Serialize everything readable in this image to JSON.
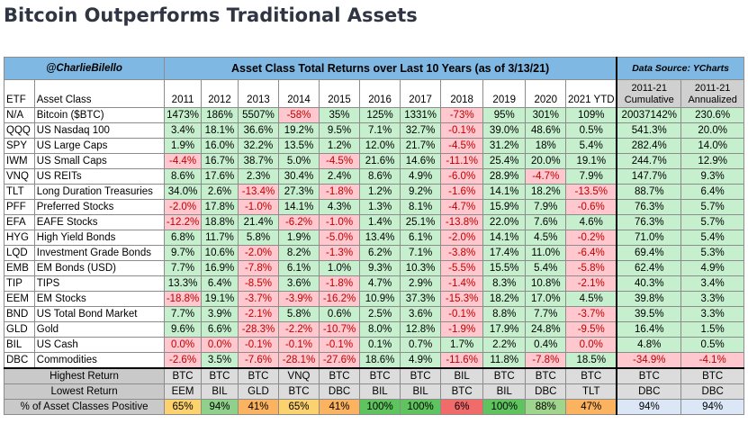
{
  "page": {
    "title": "Bitcoin Outperforms Traditional Assets"
  },
  "table": {
    "author": "@CharlieBilello",
    "title": "Asset Class Total Returns over Last 10 Years (as of 3/13/21)",
    "source": "Data Source: YCharts",
    "headers": {
      "etf": "ETF",
      "asset": "Asset Class",
      "years": [
        "2011",
        "2012",
        "2013",
        "2014",
        "2015",
        "2016",
        "2017",
        "2018",
        "2019",
        "2020",
        "2021 YTD"
      ],
      "cumulative": "2011-21 Cumulative",
      "annualized": "2011-21 Annualized"
    },
    "rows": [
      {
        "etf": "N/A",
        "asset": "Bitcoin ($BTC)",
        "values": [
          "1473%",
          "186%",
          "5507%",
          "-58%",
          "35%",
          "125%",
          "1331%",
          "-73%",
          "95%",
          "301%",
          "109%"
        ],
        "cumulative": "20037142%",
        "annualized": "230.6%"
      },
      {
        "etf": "QQQ",
        "asset": "US Nasdaq 100",
        "values": [
          "3.4%",
          "18.1%",
          "36.6%",
          "19.2%",
          "9.5%",
          "7.1%",
          "32.7%",
          "-0.1%",
          "39.0%",
          "48.6%",
          "0.5%"
        ],
        "cumulative": "541.3%",
        "annualized": "20.0%"
      },
      {
        "etf": "SPY",
        "asset": "US Large Caps",
        "values": [
          "1.9%",
          "16.0%",
          "32.2%",
          "13.5%",
          "1.2%",
          "12.0%",
          "21.7%",
          "-4.5%",
          "31.2%",
          "18%",
          "5.4%"
        ],
        "cumulative": "282.4%",
        "annualized": "14.0%"
      },
      {
        "etf": "IWM",
        "asset": "US Small Caps",
        "values": [
          "-4.4%",
          "16.7%",
          "38.7%",
          "5.0%",
          "-4.5%",
          "21.6%",
          "14.6%",
          "-11.1%",
          "25.4%",
          "20.0%",
          "19.1%"
        ],
        "cumulative": "244.7%",
        "annualized": "12.9%"
      },
      {
        "etf": "VNQ",
        "asset": "US REITs",
        "values": [
          "8.6%",
          "17.6%",
          "2.3%",
          "30.4%",
          "2.4%",
          "8.6%",
          "4.9%",
          "-6.0%",
          "28.9%",
          "-4.7%",
          "7.9%"
        ],
        "cumulative": "147.7%",
        "annualized": "9.3%"
      },
      {
        "etf": "TLT",
        "asset": "Long Duration Treasuries",
        "values": [
          "34.0%",
          "2.6%",
          "-13.4%",
          "27.3%",
          "-1.8%",
          "1.2%",
          "9.2%",
          "-1.6%",
          "14.1%",
          "18.2%",
          "-13.5%"
        ],
        "cumulative": "88.7%",
        "annualized": "6.4%"
      },
      {
        "etf": "PFF",
        "asset": "Preferred Stocks",
        "values": [
          "-2.0%",
          "17.8%",
          "-1.0%",
          "14.1%",
          "4.3%",
          "1.3%",
          "8.1%",
          "-4.7%",
          "15.9%",
          "7.9%",
          "-0.6%"
        ],
        "cumulative": "76.3%",
        "annualized": "5.7%"
      },
      {
        "etf": "EFA",
        "asset": "EAFE Stocks",
        "values": [
          "-12.2%",
          "18.8%",
          "21.4%",
          "-6.2%",
          "-1.0%",
          "1.4%",
          "25.1%",
          "-13.8%",
          "22.0%",
          "7.6%",
          "4.6%"
        ],
        "cumulative": "76.3%",
        "annualized": "5.7%"
      },
      {
        "etf": "HYG",
        "asset": "High Yield Bonds",
        "values": [
          "6.8%",
          "11.7%",
          "5.8%",
          "1.9%",
          "-5.0%",
          "13.4%",
          "6.1%",
          "-2.0%",
          "14.1%",
          "4.5%",
          "-0.2%"
        ],
        "cumulative": "71.0%",
        "annualized": "5.4%"
      },
      {
        "etf": "LQD",
        "asset": "Investment Grade Bonds",
        "values": [
          "9.7%",
          "10.6%",
          "-2.0%",
          "8.2%",
          "-1.3%",
          "6.2%",
          "7.1%",
          "-3.8%",
          "17.4%",
          "11.0%",
          "-6.4%"
        ],
        "cumulative": "69.4%",
        "annualized": "5.3%"
      },
      {
        "etf": "EMB",
        "asset": "EM Bonds (USD)",
        "values": [
          "7.7%",
          "16.9%",
          "-7.8%",
          "6.1%",
          "1.0%",
          "9.3%",
          "10.3%",
          "-5.5%",
          "15.5%",
          "5.4%",
          "-5.8%"
        ],
        "cumulative": "62.4%",
        "annualized": "4.9%"
      },
      {
        "etf": "TIP",
        "asset": "TIPS",
        "values": [
          "13.3%",
          "6.4%",
          "-8.5%",
          "3.6%",
          "-1.8%",
          "4.7%",
          "2.9%",
          "-1.4%",
          "8.3%",
          "10.8%",
          "-2.1%"
        ],
        "cumulative": "40.3%",
        "annualized": "3.4%"
      },
      {
        "etf": "EEM",
        "asset": "EM Stocks",
        "values": [
          "-18.8%",
          "19.1%",
          "-3.7%",
          "-3.9%",
          "-16.2%",
          "10.9%",
          "37.3%",
          "-15.3%",
          "18.2%",
          "17.0%",
          "4.5%"
        ],
        "cumulative": "39.8%",
        "annualized": "3.3%"
      },
      {
        "etf": "BND",
        "asset": "US Total Bond Market",
        "values": [
          "7.7%",
          "3.9%",
          "-2.1%",
          "5.8%",
          "0.6%",
          "2.5%",
          "3.6%",
          "-0.1%",
          "8.8%",
          "7.7%",
          "-3.7%"
        ],
        "cumulative": "39.5%",
        "annualized": "3.3%"
      },
      {
        "etf": "GLD",
        "asset": "Gold",
        "values": [
          "9.6%",
          "6.6%",
          "-28.3%",
          "-2.2%",
          "-10.7%",
          "8.0%",
          "12.8%",
          "-1.9%",
          "17.9%",
          "24.8%",
          "-9.5%"
        ],
        "cumulative": "16.4%",
        "annualized": "1.5%"
      },
      {
        "etf": "BIL",
        "asset": "US Cash",
        "values": [
          "0.0%",
          "0.0%",
          "-0.1%",
          "-0.1%",
          "-0.1%",
          "0.1%",
          "0.7%",
          "1.7%",
          "2.2%",
          "0.4%",
          "0.0%"
        ],
        "cumulative": "4.8%",
        "annualized": "0.5%"
      },
      {
        "etf": "DBC",
        "asset": "Commodities",
        "values": [
          "-2.6%",
          "3.5%",
          "-7.6%",
          "-28.1%",
          "-27.6%",
          "18.6%",
          "4.9%",
          "-11.6%",
          "11.8%",
          "-7.8%",
          "18.5%"
        ],
        "cumulative": "-34.9%",
        "annualized": "-4.1%"
      }
    ],
    "cell_colors": [
      [
        "p",
        "p",
        "p",
        "n",
        "p",
        "p",
        "p",
        "n",
        "p",
        "p",
        "p",
        "p",
        "p"
      ],
      [
        "p",
        "p",
        "p",
        "p",
        "p",
        "p",
        "p",
        "n",
        "p",
        "p",
        "p",
        "p",
        "p"
      ],
      [
        "p",
        "p",
        "p",
        "p",
        "p",
        "p",
        "p",
        "n",
        "p",
        "p",
        "p",
        "p",
        "p"
      ],
      [
        "n",
        "p",
        "p",
        "p",
        "n",
        "p",
        "p",
        "n",
        "p",
        "p",
        "p",
        "p",
        "p"
      ],
      [
        "p",
        "p",
        "p",
        "p",
        "p",
        "p",
        "p",
        "n",
        "p",
        "n",
        "p",
        "p",
        "p"
      ],
      [
        "p",
        "p",
        "n",
        "p",
        "n",
        "p",
        "p",
        "n",
        "p",
        "p",
        "n",
        "p",
        "p"
      ],
      [
        "n",
        "p",
        "n",
        "p",
        "p",
        "p",
        "p",
        "n",
        "p",
        "p",
        "n",
        "p",
        "p"
      ],
      [
        "n",
        "p",
        "p",
        "n",
        "n",
        "p",
        "p",
        "n",
        "p",
        "p",
        "p",
        "p",
        "p"
      ],
      [
        "p",
        "p",
        "p",
        "p",
        "n",
        "p",
        "p",
        "n",
        "p",
        "p",
        "n",
        "p",
        "p"
      ],
      [
        "p",
        "p",
        "n",
        "p",
        "n",
        "p",
        "p",
        "n",
        "p",
        "p",
        "n",
        "p",
        "p"
      ],
      [
        "p",
        "p",
        "n",
        "p",
        "p",
        "p",
        "p",
        "n",
        "p",
        "p",
        "n",
        "p",
        "p"
      ],
      [
        "p",
        "p",
        "n",
        "p",
        "n",
        "p",
        "p",
        "n",
        "p",
        "p",
        "n",
        "p",
        "p"
      ],
      [
        "n",
        "p",
        "n",
        "n",
        "n",
        "p",
        "p",
        "n",
        "p",
        "p",
        "p",
        "p",
        "p"
      ],
      [
        "p",
        "p",
        "n",
        "p",
        "p",
        "p",
        "p",
        "n",
        "p",
        "p",
        "n",
        "p",
        "p"
      ],
      [
        "p",
        "p",
        "n",
        "n",
        "n",
        "p",
        "p",
        "n",
        "p",
        "p",
        "n",
        "p",
        "p"
      ],
      [
        "n",
        "n",
        "n",
        "n",
        "n",
        "p",
        "p",
        "p",
        "p",
        "p",
        "n",
        "p",
        "p"
      ],
      [
        "n",
        "p",
        "n",
        "n",
        "n",
        "p",
        "p",
        "n",
        "p",
        "n",
        "p",
        "n",
        "n"
      ]
    ],
    "summary": {
      "highest": {
        "label": "Highest Return",
        "values": [
          "BTC",
          "BTC",
          "BTC",
          "VNQ",
          "BTC",
          "BTC",
          "BTC",
          "BIL",
          "BTC",
          "BTC",
          "BTC"
        ],
        "cumulative": "BTC",
        "annualized": "BTC"
      },
      "lowest": {
        "label": "Lowest Return",
        "values": [
          "EEM",
          "BIL",
          "GLD",
          "BTC",
          "DBC",
          "BIL",
          "BIL",
          "BTC",
          "BIL",
          "DBC",
          "TLT"
        ],
        "cumulative": "DBC",
        "annualized": "DBC"
      },
      "positive": {
        "label": "% of Asset Classes Positive",
        "values": [
          "65%",
          "94%",
          "41%",
          "65%",
          "41%",
          "100%",
          "100%",
          "6%",
          "100%",
          "88%",
          "47%"
        ],
        "cumulative": "94%",
        "annualized": "94%"
      }
    },
    "positive_colors": [
      "#fcd26f",
      "#8fd18a",
      "#fcb35f",
      "#fcd26f",
      "#fcb35f",
      "#5ec45e",
      "#5ec45e",
      "#f26b6b",
      "#5ec45e",
      "#9fd58d",
      "#fcb35f",
      "#dbe7f7",
      "#dbe7f7"
    ],
    "colors": {
      "header_blue": "#7fb9e3",
      "positive": "#c6efce",
      "negative": "#ffc7ce",
      "negative_text": "#c00000"
    }
  }
}
